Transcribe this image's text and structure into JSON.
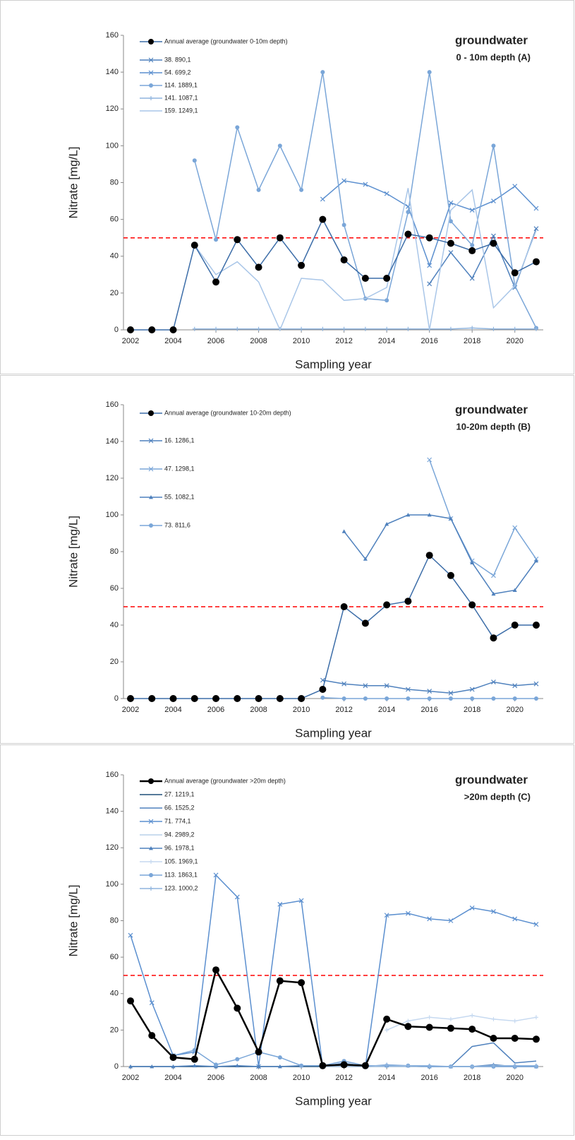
{
  "chart_data": [
    {
      "type": "line",
      "title": "groundwater",
      "subtitle": "0 - 10m depth (A)",
      "y_label": "Nitrate [mg/L]",
      "x_label": "Sampling year",
      "x": [
        2002,
        2003,
        2004,
        2005,
        2006,
        2007,
        2008,
        2009,
        2010,
        2011,
        2012,
        2013,
        2014,
        2015,
        2016,
        2017,
        2018,
        2019,
        2020,
        2021
      ],
      "xlim": [
        2002,
        2021
      ],
      "xticks": [
        2002,
        2004,
        2006,
        2008,
        2010,
        2012,
        2014,
        2016,
        2018,
        2020
      ],
      "ylim": [
        0,
        160
      ],
      "yticks": [
        0,
        20,
        40,
        60,
        80,
        100,
        120,
        140,
        160
      ],
      "reference_line": {
        "value": 50,
        "color": "#ff0000"
      },
      "series": [
        {
          "name": "Annual average (groundwater 0-10m depth)",
          "color": "#000000",
          "marker": "circle",
          "values": [
            0,
            0,
            0,
            46,
            26,
            49,
            34,
            50,
            35,
            60,
            38,
            28,
            28,
            52,
            50,
            47,
            43,
            47,
            31,
            37
          ]
        },
        {
          "name": "38. 890,1",
          "color": "#4f81bd",
          "marker": "x",
          "values": [
            null,
            null,
            null,
            null,
            null,
            null,
            null,
            null,
            null,
            null,
            null,
            null,
            null,
            null,
            25,
            42,
            28,
            51,
            23,
            55
          ]
        },
        {
          "name": "54. 699,2",
          "color": "#5b8fcf",
          "marker": "x",
          "values": [
            null,
            null,
            null,
            null,
            null,
            null,
            null,
            null,
            null,
            71,
            81,
            79,
            74,
            67,
            35,
            69,
            65,
            70,
            78,
            66
          ]
        },
        {
          "name": "114. 1889,1",
          "color": "#7aa6d8",
          "marker": "circle",
          "values": [
            null,
            null,
            null,
            92,
            49,
            110,
            76,
            100,
            76,
            140,
            57,
            17,
            16,
            64,
            140,
            59,
            46,
            100,
            24,
            1
          ]
        },
        {
          "name": "141. 1087,1",
          "color": "#8fb4de",
          "marker": "plus",
          "values": [
            null,
            null,
            null,
            0.5,
            0.5,
            0.5,
            0.5,
            0.5,
            0.5,
            0.5,
            0.5,
            0.5,
            0.5,
            0.5,
            0.5,
            0.5,
            1,
            0.5,
            0.5,
            0.5
          ]
        },
        {
          "name": "159. 1249,1",
          "color": "#a9c6e8",
          "marker": "none",
          "values": [
            null,
            null,
            null,
            46,
            30,
            37,
            26,
            0,
            28,
            27,
            16,
            17,
            23,
            77,
            0,
            65,
            76,
            12,
            24,
            54
          ]
        }
      ]
    },
    {
      "type": "line",
      "title": "groundwater",
      "subtitle": "10-20m depth (B)",
      "y_label": "Nitrate [mg/L]",
      "x_label": "Sampling year",
      "x": [
        2002,
        2003,
        2004,
        2005,
        2006,
        2007,
        2008,
        2009,
        2010,
        2011,
        2012,
        2013,
        2014,
        2015,
        2016,
        2017,
        2018,
        2019,
        2020,
        2021
      ],
      "xlim": [
        2002,
        2021
      ],
      "xticks": [
        2002,
        2004,
        2006,
        2008,
        2010,
        2012,
        2014,
        2016,
        2018,
        2020
      ],
      "ylim": [
        0,
        160
      ],
      "yticks": [
        0,
        20,
        40,
        60,
        80,
        100,
        120,
        140,
        160
      ],
      "reference_line": {
        "value": 50,
        "color": "#ff0000"
      },
      "series": [
        {
          "name": "Annual average (groundwater 10-20m depth)",
          "color": "#000000",
          "marker": "circle",
          "values": [
            0,
            0,
            0,
            0,
            0,
            0,
            0,
            0,
            0,
            5,
            50,
            41,
            51,
            53,
            78,
            67,
            51,
            33,
            40,
            40
          ]
        },
        {
          "name": "16. 1286,1",
          "color": "#4f81bd",
          "marker": "x",
          "values": [
            null,
            null,
            null,
            null,
            null,
            null,
            null,
            null,
            null,
            10,
            8,
            7,
            7,
            5,
            4,
            3,
            5,
            9,
            7,
            8
          ]
        },
        {
          "name": "47. 1298,1",
          "color": "#7aa6d8",
          "marker": "x",
          "values": [
            null,
            null,
            null,
            null,
            null,
            null,
            null,
            null,
            null,
            null,
            null,
            null,
            null,
            null,
            130,
            98,
            75,
            67,
            93,
            76
          ]
        },
        {
          "name": "55. 1082,1",
          "color": "#4f81bd",
          "marker": "triangle",
          "values": [
            null,
            null,
            null,
            null,
            null,
            null,
            null,
            null,
            null,
            null,
            91,
            76,
            95,
            100,
            100,
            98,
            74,
            57,
            59,
            75
          ]
        },
        {
          "name": "73. 811,6",
          "color": "#7aa6d8",
          "marker": "circle",
          "values": [
            null,
            null,
            null,
            null,
            null,
            null,
            null,
            null,
            null,
            0.5,
            0,
            0,
            0,
            0,
            0,
            0,
            0,
            0,
            0,
            0
          ]
        }
      ]
    },
    {
      "type": "line",
      "title": "groundwater",
      "subtitle": ">20m depth (C)",
      "y_label": "Nitrate [mg/L]",
      "x_label": "Sampling year",
      "x": [
        2002,
        2003,
        2004,
        2005,
        2006,
        2007,
        2008,
        2009,
        2010,
        2011,
        2012,
        2013,
        2014,
        2015,
        2016,
        2017,
        2018,
        2019,
        2020,
        2021
      ],
      "xlim": [
        2002,
        2021
      ],
      "xticks": [
        2002,
        2004,
        2006,
        2008,
        2010,
        2012,
        2014,
        2016,
        2018,
        2020
      ],
      "ylim": [
        0,
        160
      ],
      "yticks": [
        0,
        20,
        40,
        60,
        80,
        100,
        120,
        140,
        160
      ],
      "reference_line": {
        "value": 50,
        "color": "#ff0000"
      },
      "series": [
        {
          "name": "Annual average (groundwater >20m depth)",
          "color": "#000000",
          "marker": "circle",
          "values": [
            36,
            17,
            5,
            4,
            53,
            32,
            8,
            47,
            46,
            0.5,
            1,
            0.5,
            26,
            22,
            21.5,
            21,
            20.5,
            15.5,
            15.5,
            15
          ]
        },
        {
          "name": "27. 1219,1",
          "color": "#1f4e79",
          "marker": "none",
          "values": [
            0,
            0,
            0,
            0,
            0,
            0,
            0,
            0,
            0,
            0,
            0,
            0,
            0,
            0,
            0,
            0,
            0,
            0,
            0,
            0
          ]
        },
        {
          "name": "66. 1525,2",
          "color": "#4f81bd",
          "marker": "none",
          "values": [
            null,
            null,
            null,
            null,
            null,
            null,
            null,
            null,
            null,
            null,
            null,
            null,
            null,
            null,
            null,
            0,
            11,
            13,
            2,
            3
          ]
        },
        {
          "name": "71. 774,1",
          "color": "#5b8fcf",
          "marker": "x",
          "values": [
            72,
            35,
            6,
            8,
            105,
            93,
            0,
            89,
            91,
            0,
            2,
            0,
            83,
            84,
            81,
            80,
            87,
            85,
            81,
            78
          ]
        },
        {
          "name": "94. 2989,2",
          "color": "#b8d0ea",
          "marker": "none",
          "values": [
            null,
            null,
            null,
            null,
            null,
            null,
            null,
            null,
            null,
            0,
            0,
            0,
            0,
            0,
            0,
            0,
            0,
            0,
            0,
            0
          ]
        },
        {
          "name": "96. 1978,1",
          "color": "#4f81bd",
          "marker": "triangle",
          "values": [
            0,
            0,
            0,
            0.5,
            0,
            0.5,
            0,
            0,
            0.5,
            0.5,
            1,
            0.5,
            0.5,
            0.5,
            0,
            0,
            0,
            1,
            0,
            0
          ]
        },
        {
          "name": "105. 1969,1",
          "color": "#c6d9f0",
          "marker": "plus",
          "values": [
            null,
            null,
            null,
            null,
            null,
            null,
            null,
            null,
            null,
            null,
            null,
            null,
            20,
            25,
            27,
            26,
            28,
            26,
            25,
            27
          ]
        },
        {
          "name": "113. 1863,1",
          "color": "#7aa6d8",
          "marker": "circle",
          "values": [
            null,
            null,
            6,
            9,
            1,
            4,
            8,
            5,
            0.5,
            0.5,
            3,
            0.5,
            0.5,
            0.5,
            0,
            0,
            0,
            0,
            0,
            0
          ]
        },
        {
          "name": "123. 1000,2",
          "color": "#8fb4de",
          "marker": "plus",
          "values": [
            null,
            null,
            null,
            null,
            null,
            null,
            null,
            null,
            null,
            null,
            2,
            0,
            1,
            0.5,
            0.5,
            0,
            0,
            0.5,
            0.5,
            0.5
          ]
        }
      ]
    }
  ]
}
